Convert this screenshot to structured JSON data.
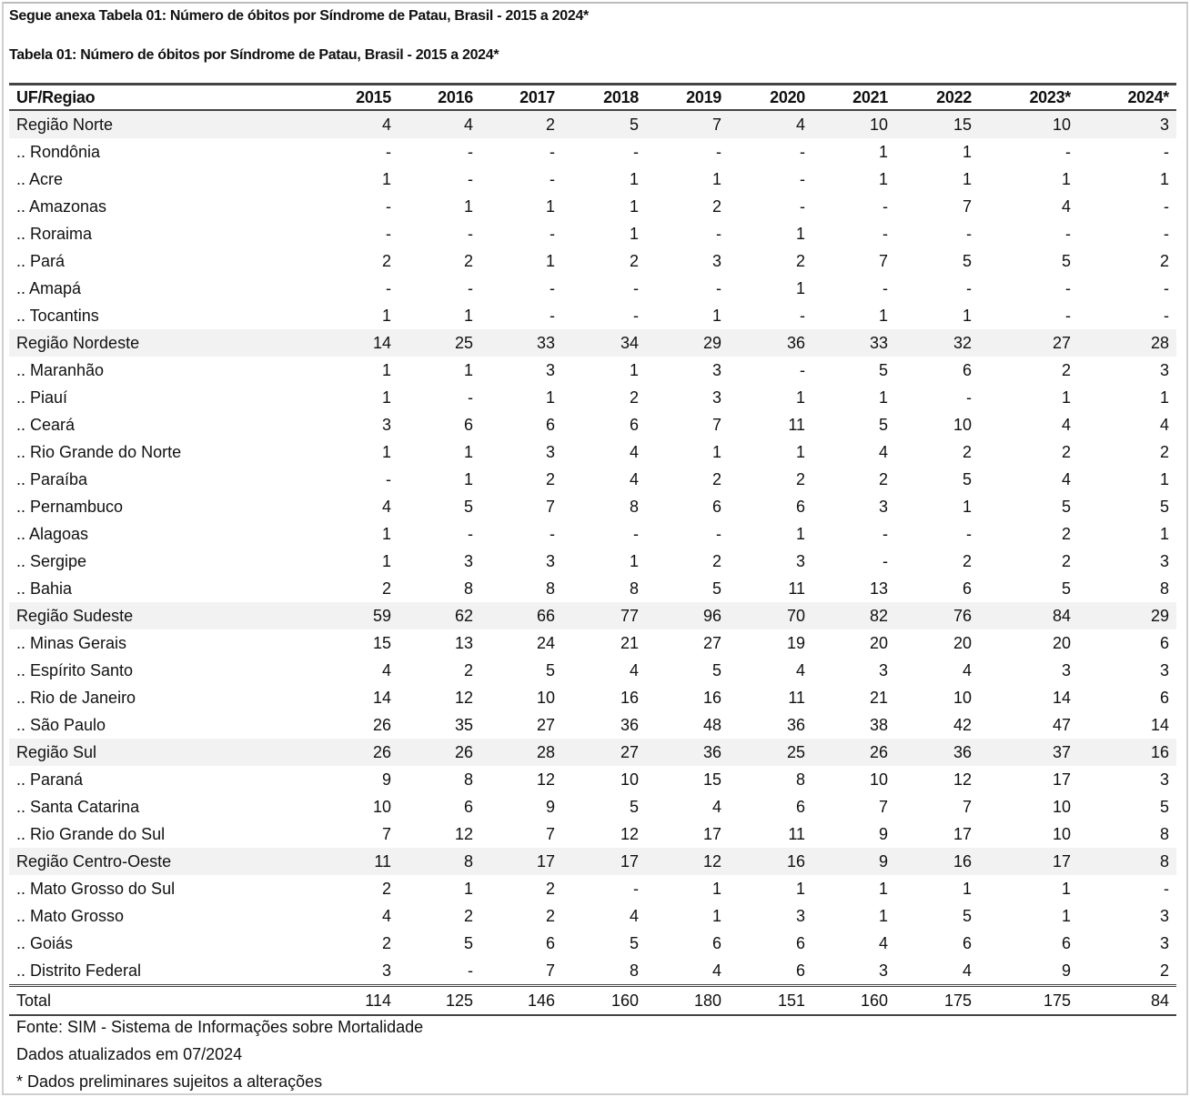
{
  "document": {
    "intro": "Segue anexa Tabela 01: Número de óbitos por Síndrome de Patau, Brasil - 2015 a 2024*",
    "table_title": "Tabela 01: Número de óbitos por Síndrome de Patau, Brasil - 2015 a 2024*"
  },
  "table": {
    "headers": [
      "UF/Regiao",
      "2015",
      "2016",
      "2017",
      "2018",
      "2019",
      "2020",
      "2021",
      "2022",
      "2023*",
      "2024*"
    ],
    "rows": [
      {
        "type": "region",
        "label": "Região Norte",
        "values": [
          "4",
          "4",
          "2",
          "5",
          "7",
          "4",
          "10",
          "15",
          "10",
          "3"
        ]
      },
      {
        "type": "state",
        "label": ".. Rondônia",
        "values": [
          "-",
          "-",
          "-",
          "-",
          "-",
          "-",
          "1",
          "1",
          "-",
          "-"
        ]
      },
      {
        "type": "state",
        "label": ".. Acre",
        "values": [
          "1",
          "-",
          "-",
          "1",
          "1",
          "-",
          "1",
          "1",
          "1",
          "1"
        ]
      },
      {
        "type": "state",
        "label": ".. Amazonas",
        "values": [
          "-",
          "1",
          "1",
          "1",
          "2",
          "-",
          "-",
          "7",
          "4",
          "-"
        ]
      },
      {
        "type": "state",
        "label": ".. Roraima",
        "values": [
          "-",
          "-",
          "-",
          "1",
          "-",
          "1",
          "-",
          "-",
          "-",
          "-"
        ]
      },
      {
        "type": "state",
        "label": ".. Pará",
        "values": [
          "2",
          "2",
          "1",
          "2",
          "3",
          "2",
          "7",
          "5",
          "5",
          "2"
        ]
      },
      {
        "type": "state",
        "label": ".. Amapá",
        "values": [
          "-",
          "-",
          "-",
          "-",
          "-",
          "1",
          "-",
          "-",
          "-",
          "-"
        ]
      },
      {
        "type": "state",
        "label": ".. Tocantins",
        "values": [
          "1",
          "1",
          "-",
          "-",
          "1",
          "-",
          "1",
          "1",
          "-",
          "-"
        ]
      },
      {
        "type": "region",
        "label": "Região Nordeste",
        "values": [
          "14",
          "25",
          "33",
          "34",
          "29",
          "36",
          "33",
          "32",
          "27",
          "28"
        ]
      },
      {
        "type": "state",
        "label": ".. Maranhão",
        "values": [
          "1",
          "1",
          "3",
          "1",
          "3",
          "-",
          "5",
          "6",
          "2",
          "3"
        ]
      },
      {
        "type": "state",
        "label": ".. Piauí",
        "values": [
          "1",
          "-",
          "1",
          "2",
          "3",
          "1",
          "1",
          "-",
          "1",
          "1"
        ]
      },
      {
        "type": "state",
        "label": ".. Ceará",
        "values": [
          "3",
          "6",
          "6",
          "6",
          "7",
          "11",
          "5",
          "10",
          "4",
          "4"
        ]
      },
      {
        "type": "state",
        "label": ".. Rio Grande do Norte",
        "values": [
          "1",
          "1",
          "3",
          "4",
          "1",
          "1",
          "4",
          "2",
          "2",
          "2"
        ]
      },
      {
        "type": "state",
        "label": ".. Paraíba",
        "values": [
          "-",
          "1",
          "2",
          "4",
          "2",
          "2",
          "2",
          "5",
          "4",
          "1"
        ]
      },
      {
        "type": "state",
        "label": ".. Pernambuco",
        "values": [
          "4",
          "5",
          "7",
          "8",
          "6",
          "6",
          "3",
          "1",
          "5",
          "5"
        ]
      },
      {
        "type": "state",
        "label": ".. Alagoas",
        "values": [
          "1",
          "-",
          "-",
          "-",
          "-",
          "1",
          "-",
          "-",
          "2",
          "1"
        ]
      },
      {
        "type": "state",
        "label": ".. Sergipe",
        "values": [
          "1",
          "3",
          "3",
          "1",
          "2",
          "3",
          "-",
          "2",
          "2",
          "3"
        ]
      },
      {
        "type": "state",
        "label": ".. Bahia",
        "values": [
          "2",
          "8",
          "8",
          "8",
          "5",
          "11",
          "13",
          "6",
          "5",
          "8"
        ]
      },
      {
        "type": "region",
        "label": "Região Sudeste",
        "values": [
          "59",
          "62",
          "66",
          "77",
          "96",
          "70",
          "82",
          "76",
          "84",
          "29"
        ]
      },
      {
        "type": "state",
        "label": ".. Minas Gerais",
        "values": [
          "15",
          "13",
          "24",
          "21",
          "27",
          "19",
          "20",
          "20",
          "20",
          "6"
        ]
      },
      {
        "type": "state",
        "label": ".. Espírito Santo",
        "values": [
          "4",
          "2",
          "5",
          "4",
          "5",
          "4",
          "3",
          "4",
          "3",
          "3"
        ]
      },
      {
        "type": "state",
        "label": ".. Rio de Janeiro",
        "values": [
          "14",
          "12",
          "10",
          "16",
          "16",
          "11",
          "21",
          "10",
          "14",
          "6"
        ]
      },
      {
        "type": "state",
        "label": ".. São Paulo",
        "values": [
          "26",
          "35",
          "27",
          "36",
          "48",
          "36",
          "38",
          "42",
          "47",
          "14"
        ]
      },
      {
        "type": "region",
        "label": "Região Sul",
        "values": [
          "26",
          "26",
          "28",
          "27",
          "36",
          "25",
          "26",
          "36",
          "37",
          "16"
        ]
      },
      {
        "type": "state",
        "label": ".. Paraná",
        "values": [
          "9",
          "8",
          "12",
          "10",
          "15",
          "8",
          "10",
          "12",
          "17",
          "3"
        ]
      },
      {
        "type": "state",
        "label": ".. Santa Catarina",
        "values": [
          "10",
          "6",
          "9",
          "5",
          "4",
          "6",
          "7",
          "7",
          "10",
          "5"
        ]
      },
      {
        "type": "state",
        "label": ".. Rio Grande do Sul",
        "values": [
          "7",
          "12",
          "7",
          "12",
          "17",
          "11",
          "9",
          "17",
          "10",
          "8"
        ]
      },
      {
        "type": "region",
        "label": "Região Centro-Oeste",
        "values": [
          "11",
          "8",
          "17",
          "17",
          "12",
          "16",
          "9",
          "16",
          "17",
          "8"
        ]
      },
      {
        "type": "state",
        "label": ".. Mato Grosso do Sul",
        "values": [
          "2",
          "1",
          "2",
          "-",
          "1",
          "1",
          "1",
          "1",
          "1",
          "-"
        ]
      },
      {
        "type": "state",
        "label": ".. Mato Grosso",
        "values": [
          "4",
          "2",
          "2",
          "4",
          "1",
          "3",
          "1",
          "5",
          "1",
          "3"
        ]
      },
      {
        "type": "state",
        "label": ".. Goiás",
        "values": [
          "2",
          "5",
          "6",
          "5",
          "6",
          "6",
          "4",
          "6",
          "6",
          "3"
        ]
      },
      {
        "type": "state",
        "label": ".. Distrito Federal",
        "values": [
          "3",
          "-",
          "7",
          "8",
          "4",
          "6",
          "3",
          "4",
          "9",
          "2"
        ]
      },
      {
        "type": "total",
        "label": "Total",
        "values": [
          "114",
          "125",
          "146",
          "160",
          "180",
          "151",
          "160",
          "175",
          "175",
          "84"
        ]
      }
    ]
  },
  "notes": [
    "Fonte: SIM - Sistema de Informações sobre Mortalidade",
    "Dados atualizados em 07/2024",
    "* Dados preliminares sujeitos a alterações"
  ]
}
